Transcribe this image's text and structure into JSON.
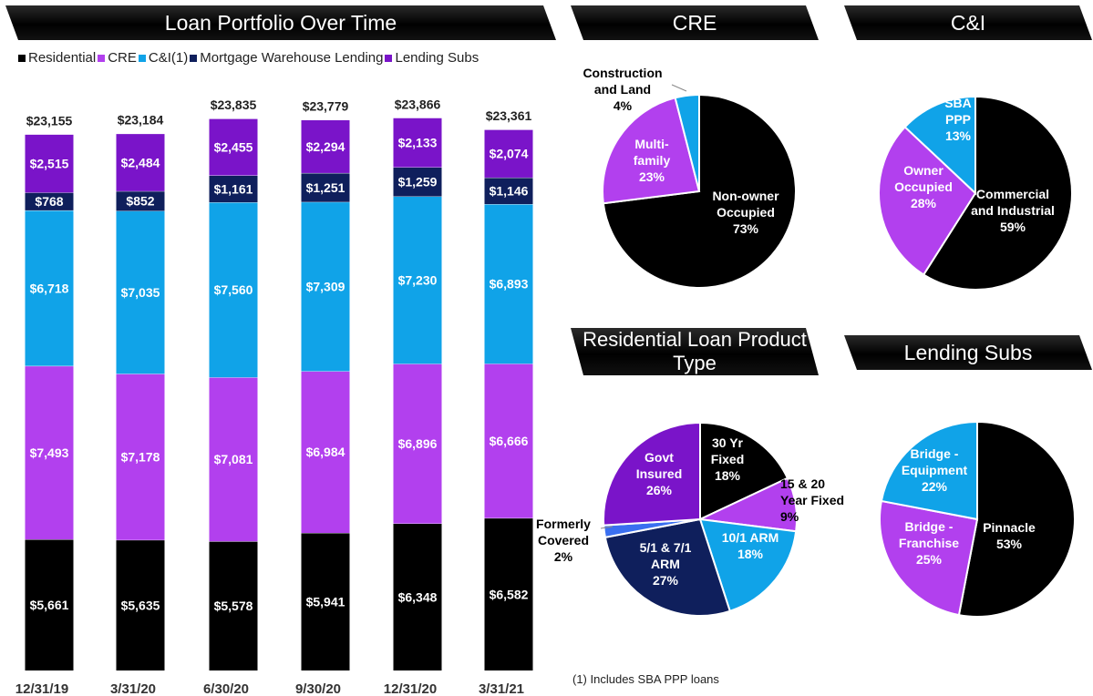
{
  "titles": {
    "portfolio": "Loan Portfolio Over Time",
    "cre": "CRE",
    "ci": "C&I",
    "residential": "Residential Loan Product Type",
    "lending_subs": "Lending Subs"
  },
  "legend": [
    {
      "label": "Residential",
      "color": "#000000"
    },
    {
      "label": "CRE",
      "color": "#b240ee"
    },
    {
      "label": "C&I(1)",
      "color": "#10a3e8"
    },
    {
      "label": "Mortgage Warehouse Lending",
      "color": "#0f1f5c"
    },
    {
      "label": "Lending Subs",
      "color": "#7a14c9"
    }
  ],
  "footnote": "(1)   Includes SBA PPP loans",
  "chart_data": [
    {
      "type": "bar",
      "stacked": true,
      "title": "Loan Portfolio Over Time",
      "categories": [
        "12/31/19",
        "3/31/20",
        "6/30/20",
        "9/30/20",
        "12/31/20",
        "3/31/21"
      ],
      "totals": [
        "$23,155",
        "$23,184",
        "$23,835",
        "$23,779",
        "$23,866",
        "$23,361"
      ],
      "total_values": [
        23155,
        23184,
        23835,
        23779,
        23866,
        23361
      ],
      "series": [
        {
          "name": "Residential",
          "color": "#000000",
          "values": [
            5661,
            5635,
            5578,
            5941,
            6348,
            6582
          ],
          "labels": [
            "$5,661",
            "$5,635",
            "$5,578",
            "$5,941",
            "$6,348",
            "$6,582"
          ]
        },
        {
          "name": "CRE",
          "color": "#b240ee",
          "values": [
            7493,
            7178,
            7081,
            6984,
            6896,
            6666
          ],
          "labels": [
            "$7,493",
            "$7,178",
            "$7,081",
            "$6,984",
            "$6,896",
            "$6,666"
          ]
        },
        {
          "name": "C&I(1)",
          "color": "#10a3e8",
          "values": [
            6718,
            7035,
            7560,
            7309,
            7230,
            6893
          ],
          "labels": [
            "$6,718",
            "$7,035",
            "$7,560",
            "$7,309",
            "$7,230",
            "$6,893"
          ]
        },
        {
          "name": "Mortgage Warehouse Lending",
          "color": "#0f1f5c",
          "values": [
            768,
            852,
            1161,
            1251,
            1259,
            1146
          ],
          "labels": [
            "$768",
            "$852",
            "$1,161",
            "$1,251",
            "$1,259",
            "$1,146"
          ]
        },
        {
          "name": "Lending Subs",
          "color": "#7a14c9",
          "values": [
            2515,
            2484,
            2455,
            2294,
            2133,
            2074
          ],
          "labels": [
            "$2,515",
            "$2,484",
            "$2,455",
            "$2,294",
            "$2,133",
            "$2,074"
          ]
        }
      ],
      "legend": "top",
      "grid": false
    },
    {
      "type": "pie",
      "title": "CRE",
      "start_angle": 0,
      "slices": [
        {
          "label": [
            "Non-owner",
            "Occupied",
            "73%"
          ],
          "value": 73,
          "color": "#000000",
          "text_color": "#ffffff"
        },
        {
          "label": [
            "Multi-",
            "family",
            "23%"
          ],
          "value": 23,
          "color": "#b240ee",
          "text_color": "#ffffff"
        },
        {
          "label": [
            "Construction",
            "and Land",
            "4%"
          ],
          "value": 4,
          "color": "#10a3e8",
          "text_color": "#000000",
          "outside": true
        }
      ]
    },
    {
      "type": "pie",
      "title": "C&I",
      "start_angle": 0,
      "slices": [
        {
          "label": [
            "Commercial",
            "and Industrial",
            "59%"
          ],
          "value": 59,
          "color": "#000000",
          "text_color": "#ffffff"
        },
        {
          "label": [
            "Owner",
            "Occupied",
            "28%"
          ],
          "value": 28,
          "color": "#b240ee",
          "text_color": "#ffffff"
        },
        {
          "label": [
            "SBA",
            "PPP",
            "13%"
          ],
          "value": 13,
          "color": "#10a3e8",
          "text_color": "#ffffff"
        }
      ]
    },
    {
      "type": "pie",
      "title": "Residential Loan Product Type",
      "start_angle": 0,
      "slices": [
        {
          "label": [
            "30 Yr",
            "Fixed",
            "18%"
          ],
          "value": 18,
          "color": "#000000",
          "text_color": "#ffffff"
        },
        {
          "label": [
            "15 & 20",
            "Year Fixed",
            "9%"
          ],
          "value": 9,
          "color": "#b240ee",
          "text_color": "#000000",
          "outside": true
        },
        {
          "label": [
            "10/1 ARM",
            "18%"
          ],
          "value": 18,
          "color": "#10a3e8",
          "text_color": "#ffffff"
        },
        {
          "label": [
            "5/1 & 7/1",
            "ARM",
            "27%"
          ],
          "value": 27,
          "color": "#0f1f5c",
          "text_color": "#ffffff"
        },
        {
          "label": [
            "Formerly",
            "Covered",
            "2%"
          ],
          "value": 2,
          "color": "#3a6ff0",
          "text_color": "#000000",
          "outside": true
        },
        {
          "label": [
            "Govt",
            "Insured",
            "26%"
          ],
          "value": 26,
          "color": "#7a14c9",
          "text_color": "#ffffff"
        }
      ]
    },
    {
      "type": "pie",
      "title": "Lending Subs",
      "start_angle": 0,
      "slices": [
        {
          "label": [
            "Pinnacle",
            "53%"
          ],
          "value": 53,
          "color": "#000000",
          "text_color": "#ffffff"
        },
        {
          "label": [
            "Bridge -",
            "Franchise",
            "25%"
          ],
          "value": 25,
          "color": "#b240ee",
          "text_color": "#ffffff"
        },
        {
          "label": [
            "Bridge -",
            "Equipment",
            "22%"
          ],
          "value": 22,
          "color": "#10a3e8",
          "text_color": "#ffffff"
        }
      ]
    }
  ]
}
